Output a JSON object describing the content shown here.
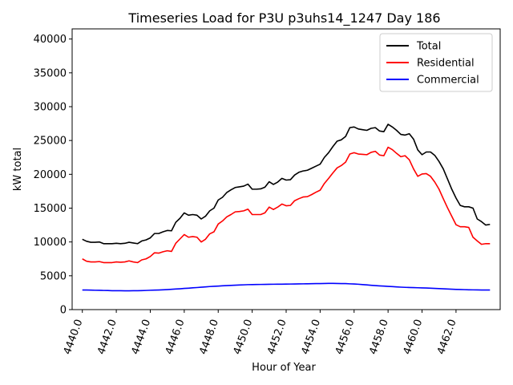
{
  "chart_data": {
    "type": "line",
    "title": "Timeseries Load for P3U p3uhs14_1247  Day 186",
    "xlabel": "Hour of Year",
    "ylabel": "kW total",
    "xlim": [
      4439.4,
      4464.6
    ],
    "ylim": [
      0,
      41500
    ],
    "x_ticks": [
      4440,
      4442,
      4444,
      4446,
      4448,
      4450,
      4452,
      4454,
      4456,
      4458,
      4460,
      4462
    ],
    "x_tick_labels": [
      "4440.0",
      "4442.0",
      "4444.0",
      "4446.0",
      "4448.0",
      "4450.0",
      "4452.0",
      "4454.0",
      "4456.0",
      "4458.0",
      "4460.0",
      "4462.0"
    ],
    "y_ticks": [
      0,
      5000,
      10000,
      15000,
      20000,
      25000,
      30000,
      35000,
      40000
    ],
    "y_tick_labels": [
      "0",
      "5000",
      "10000",
      "15000",
      "20000",
      "25000",
      "30000",
      "35000",
      "40000"
    ],
    "legend_position": "top-right",
    "x_start": 4440,
    "x_step": 0.25,
    "series": [
      {
        "name": "Total",
        "color": "#000000",
        "values": [
          10400,
          10100,
          9950,
          9950,
          10000,
          9750,
          9750,
          9750,
          9800,
          9750,
          9800,
          9950,
          9850,
          9750,
          10150,
          10300,
          10600,
          11250,
          11250,
          11500,
          11700,
          11650,
          12900,
          13500,
          14300,
          13950,
          14050,
          13950,
          13400,
          13800,
          14600,
          15000,
          16200,
          16600,
          17300,
          17700,
          18050,
          18150,
          18250,
          18550,
          17800,
          17800,
          17850,
          18100,
          18900,
          18500,
          18850,
          19400,
          19150,
          19200,
          19900,
          20300,
          20500,
          20600,
          20900,
          21200,
          21500,
          22500,
          23200,
          24100,
          24900,
          25100,
          25600,
          26900,
          27000,
          26700,
          26600,
          26500,
          26800,
          26900,
          26400,
          26300,
          27400,
          27000,
          26500,
          25900,
          25800,
          26000,
          25200,
          23600,
          22900,
          23300,
          23300,
          22800,
          21900,
          20800,
          19300,
          17800,
          16500,
          15400,
          15200,
          15200,
          15000,
          13400,
          13000,
          12500,
          12600
        ]
      },
      {
        "name": "Residential",
        "color": "#ff0000",
        "values": [
          7500,
          7150,
          7050,
          7050,
          7100,
          6950,
          6950,
          6950,
          7050,
          7000,
          7050,
          7200,
          7050,
          6950,
          7350,
          7500,
          7850,
          8400,
          8350,
          8550,
          8700,
          8600,
          9800,
          10450,
          11100,
          10700,
          10800,
          10700,
          10000,
          10400,
          11200,
          11500,
          12650,
          13100,
          13700,
          14050,
          14450,
          14500,
          14600,
          14850,
          14050,
          14050,
          14050,
          14300,
          15150,
          14800,
          15150,
          15600,
          15350,
          15400,
          16100,
          16400,
          16650,
          16700,
          17000,
          17350,
          17650,
          18650,
          19400,
          20200,
          20950,
          21300,
          21800,
          23000,
          23200,
          23000,
          22950,
          22900,
          23250,
          23400,
          22850,
          22750,
          24000,
          23650,
          23100,
          22600,
          22750,
          22150,
          20800,
          19700,
          20050,
          20100,
          19700,
          18850,
          17800,
          16400,
          15050,
          13800,
          12550,
          12250,
          12250,
          12150,
          10700,
          10150,
          9650,
          9750,
          9750
        ]
      },
      {
        "name": "Commercial",
        "color": "#0000ff",
        "values": [
          2900,
          2900,
          2880,
          2860,
          2850,
          2830,
          2820,
          2800,
          2790,
          2790,
          2780,
          2780,
          2790,
          2800,
          2810,
          2830,
          2860,
          2880,
          2900,
          2930,
          2960,
          3000,
          3040,
          3080,
          3130,
          3170,
          3220,
          3260,
          3310,
          3360,
          3410,
          3450,
          3480,
          3520,
          3550,
          3580,
          3610,
          3640,
          3660,
          3690,
          3700,
          3710,
          3720,
          3730,
          3740,
          3750,
          3760,
          3760,
          3770,
          3780,
          3790,
          3800,
          3810,
          3820,
          3830,
          3840,
          3850,
          3860,
          3870,
          3870,
          3860,
          3850,
          3840,
          3810,
          3790,
          3750,
          3700,
          3650,
          3600,
          3550,
          3510,
          3470,
          3430,
          3400,
          3360,
          3320,
          3290,
          3270,
          3250,
          3230,
          3210,
          3190,
          3170,
          3140,
          3110,
          3080,
          3050,
          3020,
          2990,
          2970,
          2950,
          2930,
          2920,
          2910,
          2900,
          2900,
          2900
        ]
      }
    ]
  }
}
